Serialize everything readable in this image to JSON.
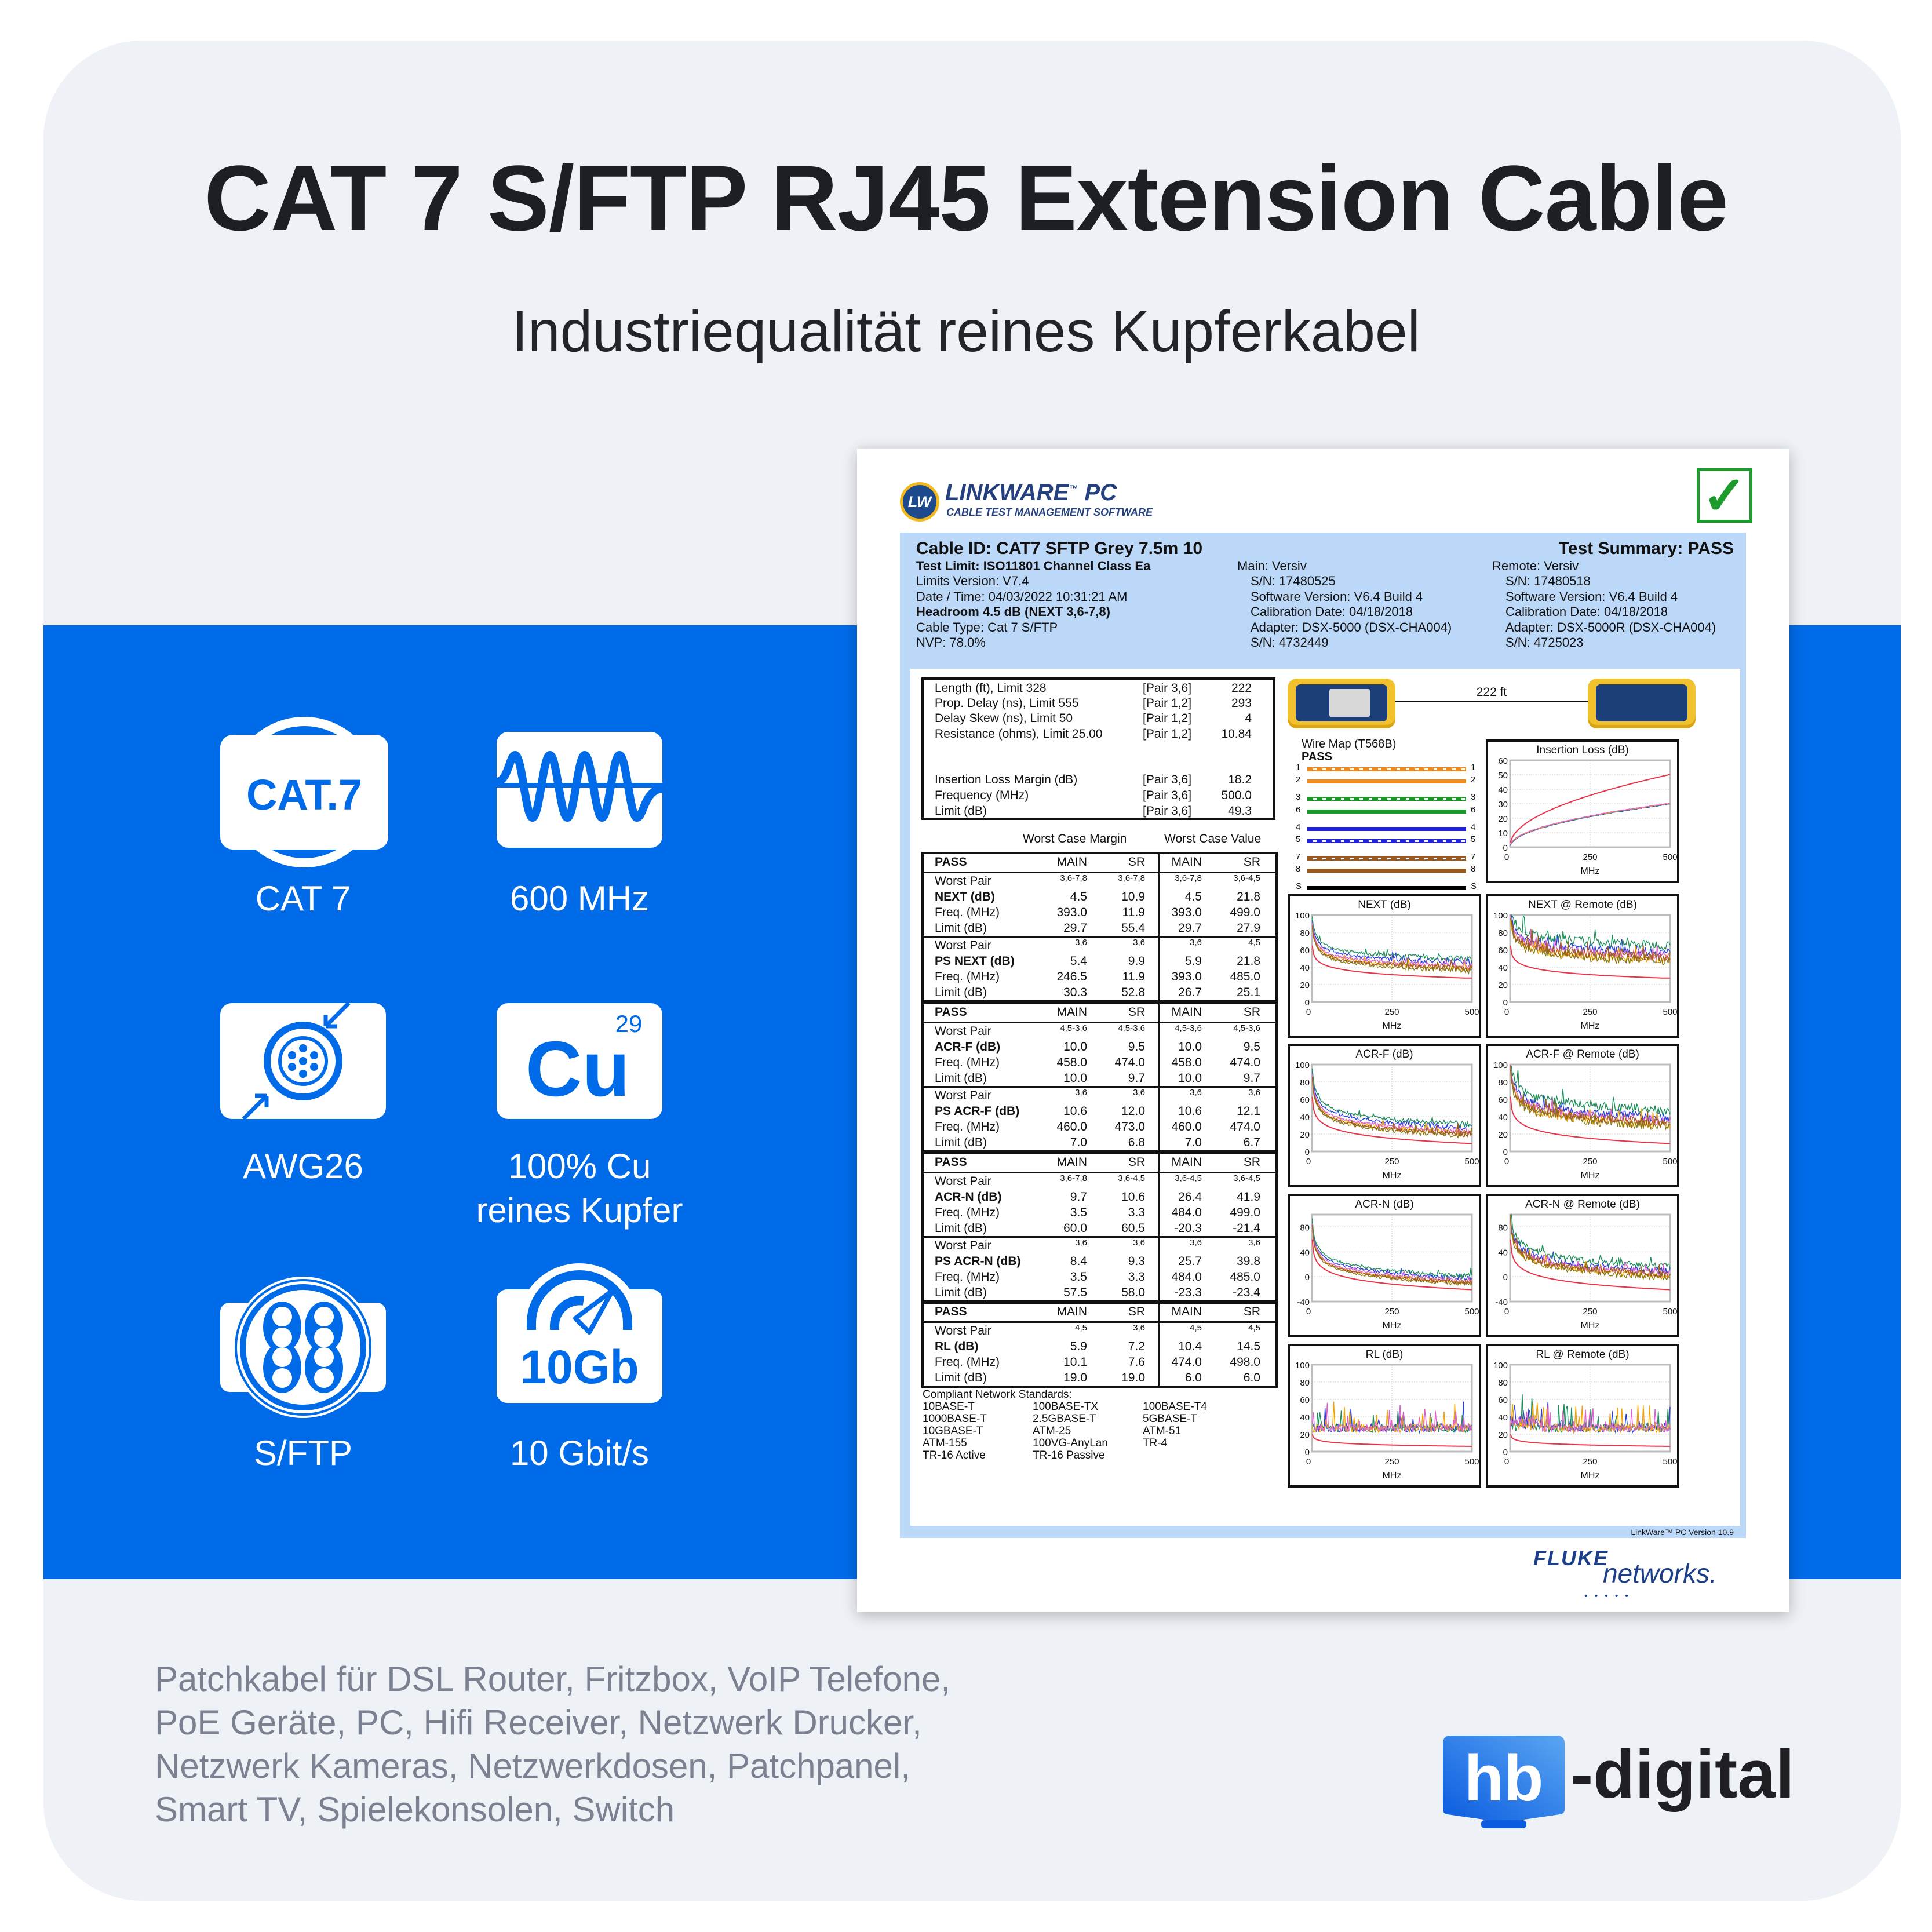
{
  "title": "CAT 7 S/FTP RJ45 Extension Cable",
  "subtitle": "Industriequalität reines Kupferkabel",
  "colors": {
    "brand_blue": "#006be8",
    "card_bg": "#eef1f6",
    "report_blue": "#bcd8f8",
    "pass_green": "#1c9a2c",
    "limit_red": "#e8334a"
  },
  "features": [
    {
      "icon": "cat7-badge-icon",
      "icon_text": "CAT.7",
      "label": "CAT 7"
    },
    {
      "icon": "frequency-wave-icon",
      "label": "600 MHz"
    },
    {
      "icon": "cable-cross-section-icon",
      "label": "AWG26"
    },
    {
      "icon": "copper-element-icon",
      "icon_text": "Cu",
      "icon_sup": "29",
      "label_line1": "100% Cu",
      "label_line2": "reines Kupfer"
    },
    {
      "icon": "shielded-pairs-icon",
      "label": "S/FTP"
    },
    {
      "icon": "speedometer-icon",
      "icon_text": "10Gb",
      "label": "10 Gbit/s"
    }
  ],
  "bottom_lines": [
    "Patchkabel für DSL Router, Fritzbox, VoIP Telefone,",
    "PoE Geräte, PC, Hifi Receiver, Netzwerk Drucker,",
    "Netzwerk Kameras, Netzwerkdosen, Patchpanel,",
    "Smart TV, Spielekonsolen, Switch"
  ],
  "brand": {
    "logo_box": "hb",
    "logo_text": "-digital"
  },
  "report": {
    "logo_title": "LINKWARE",
    "logo_tm": "™",
    "logo_pc": "PC",
    "logo_sub": "CABLE TEST MANAGEMENT SOFTWARE",
    "logo_badge": "LW",
    "check": "✓",
    "cable_id": "Cable ID: CAT7 SFTP Grey 7.5m 10",
    "test_summary": "Test Summary: PASS",
    "left_lines": [
      {
        "text": "Test Limit: ISO11801 Channel Class Ea",
        "bold": true
      },
      {
        "text": "Limits Version: V7.4",
        "bold": false
      },
      {
        "text": "Date / Time: 04/03/2022  10:31:21 AM",
        "bold": false
      },
      {
        "text": "Headroom 4.5 dB (NEXT 3,6-7,8)",
        "bold": true
      },
      {
        "text": "Cable Type: Cat 7 S/FTP",
        "bold": false
      },
      {
        "text": "NVP: 78.0%",
        "bold": false
      }
    ],
    "main_lines": [
      "Main: Versiv",
      "S/N: 17480525",
      "Software Version: V6.4 Build 4",
      "Calibration Date: 04/18/2018",
      "Adapter: DSX-5000 (DSX-CHA004)",
      "S/N: 4732449"
    ],
    "remote_lines": [
      "Remote: Versiv",
      "S/N: 17480518",
      "Software Version: V6.4 Build 4",
      "Calibration Date: 04/18/2018",
      "Adapter: DSX-5000R (DSX-CHA004)",
      "S/N: 4725023"
    ],
    "summary": [
      {
        "label": "Length (ft), Limit 328",
        "pair": "[Pair 3,6]",
        "value": "222"
      },
      {
        "label": "Prop. Delay (ns), Limit 555",
        "pair": "[Pair 1,2]",
        "value": "293"
      },
      {
        "label": "Delay Skew (ns), Limit 50",
        "pair": "[Pair 1,2]",
        "value": "4"
      },
      {
        "label": "Resistance (ohms), Limit 25.00",
        "pair": "[Pair 1,2]",
        "value": "10.84"
      },
      {
        "label": "Insertion Loss Margin (dB)",
        "pair": "[Pair 3,6]",
        "value": "18.2"
      },
      {
        "label": "Frequency (MHz)",
        "pair": "[Pair 3,6]",
        "value": "500.0"
      },
      {
        "label": "Limit (dB)",
        "pair": "[Pair 3,6]",
        "value": "49.3"
      }
    ],
    "worst_case_margin": "Worst Case Margin",
    "worst_case_value": "Worst Case Value",
    "tables": [
      {
        "status": "PASS",
        "columns": [
          "MAIN",
          "SR",
          "MAIN",
          "SR"
        ],
        "groups": [
          {
            "rows": [
              [
                "Worst Pair",
                "3,6-7,8",
                "3,6-7,8",
                "3,6-7,8",
                "3,6-4,5"
              ],
              [
                "NEXT (dB)",
                "4.5",
                "10.9",
                "4.5",
                "21.8"
              ],
              [
                "Freq. (MHz)",
                "393.0",
                "11.9",
                "393.0",
                "499.0"
              ],
              [
                "Limit (dB)",
                "29.7",
                "55.4",
                "29.7",
                "27.9"
              ]
            ]
          },
          {
            "rows": [
              [
                "Worst Pair",
                "3,6",
                "3,6",
                "3,6",
                "4,5"
              ],
              [
                "PS NEXT (dB)",
                "5.4",
                "9.9",
                "5.9",
                "21.8"
              ],
              [
                "Freq. (MHz)",
                "246.5",
                "11.9",
                "393.0",
                "485.0"
              ],
              [
                "Limit (dB)",
                "30.3",
                "52.8",
                "26.7",
                "25.1"
              ]
            ]
          }
        ]
      },
      {
        "status": "PASS",
        "columns": [
          "MAIN",
          "SR",
          "MAIN",
          "SR"
        ],
        "groups": [
          {
            "rows": [
              [
                "Worst Pair",
                "4,5-3,6",
                "4,5-3,6",
                "4,5-3,6",
                "4,5-3,6"
              ],
              [
                "ACR-F (dB)",
                "10.0",
                "9.5",
                "10.0",
                "9.5"
              ],
              [
                "Freq. (MHz)",
                "458.0",
                "474.0",
                "458.0",
                "474.0"
              ],
              [
                "Limit (dB)",
                "10.0",
                "9.7",
                "10.0",
                "9.7"
              ]
            ]
          },
          {
            "rows": [
              [
                "Worst Pair",
                "3,6",
                "3,6",
                "3,6",
                "3,6"
              ],
              [
                "PS ACR-F (dB)",
                "10.6",
                "12.0",
                "10.6",
                "12.1"
              ],
              [
                "Freq. (MHz)",
                "460.0",
                "473.0",
                "460.0",
                "474.0"
              ],
              [
                "Limit (dB)",
                "7.0",
                "6.8",
                "7.0",
                "6.7"
              ]
            ]
          }
        ]
      },
      {
        "status": "PASS",
        "columns": [
          "MAIN",
          "SR",
          "MAIN",
          "SR"
        ],
        "groups": [
          {
            "rows": [
              [
                "Worst Pair",
                "3,6-7,8",
                "3,6-4,5",
                "3,6-4,5",
                "3,6-4,5"
              ],
              [
                "ACR-N (dB)",
                "9.7",
                "10.6",
                "26.4",
                "41.9"
              ],
              [
                "Freq. (MHz)",
                "3.5",
                "3.3",
                "484.0",
                "499.0"
              ],
              [
                "Limit (dB)",
                "60.0",
                "60.5",
                "-20.3",
                "-21.4"
              ]
            ]
          },
          {
            "rows": [
              [
                "Worst Pair",
                "3,6",
                "3,6",
                "3,6",
                "3,6"
              ],
              [
                "PS ACR-N (dB)",
                "8.4",
                "9.3",
                "25.7",
                "39.8"
              ],
              [
                "Freq. (MHz)",
                "3.5",
                "3.3",
                "484.0",
                "485.0"
              ],
              [
                "Limit (dB)",
                "57.5",
                "58.0",
                "-23.3",
                "-23.4"
              ]
            ]
          }
        ]
      },
      {
        "status": "PASS",
        "columns": [
          "MAIN",
          "SR",
          "MAIN",
          "SR"
        ],
        "groups": [
          {
            "rows": [
              [
                "Worst Pair",
                "4,5",
                "3,6",
                "4,5",
                "4,5"
              ],
              [
                "RL (dB)",
                "5.9",
                "7.2",
                "10.4",
                "14.5"
              ],
              [
                "Freq. (MHz)",
                "10.1",
                "7.6",
                "474.0",
                "498.0"
              ],
              [
                "Limit (dB)",
                "19.0",
                "19.0",
                "6.0",
                "6.0"
              ]
            ]
          }
        ]
      }
    ],
    "standards_title": "Compliant Network Standards:",
    "standards": [
      [
        "10BASE-T",
        "100BASE-TX",
        "100BASE-T4"
      ],
      [
        "1000BASE-T",
        "2.5GBASE-T",
        "5GBASE-T"
      ],
      [
        "10GBASE-T",
        "ATM-25",
        "ATM-51"
      ],
      [
        "ATM-155",
        "100VG-AnyLan",
        "TR-4"
      ],
      [
        "TR-16 Active",
        "TR-16 Passive"
      ]
    ],
    "length_label": "222 ft",
    "wire_map": {
      "title": "Wire Map (T568B)",
      "status": "PASS",
      "wires": [
        {
          "pin": "1",
          "color": "#f08a1c",
          "striped": true
        },
        {
          "pin": "2",
          "color": "#f08a1c",
          "striped": false
        },
        {
          "pin": "3",
          "color": "#1a9a2a",
          "striped": true
        },
        {
          "pin": "6",
          "color": "#1a9a2a",
          "striped": false
        },
        {
          "pin": "4",
          "color": "#2222dd",
          "striped": false
        },
        {
          "pin": "5",
          "color": "#2222dd",
          "striped": true
        },
        {
          "pin": "7",
          "color": "#9a5a20",
          "striped": true
        },
        {
          "pin": "8",
          "color": "#9a5a20",
          "striped": false
        },
        {
          "pin": "S",
          "color": "#000000",
          "striped": false
        }
      ]
    },
    "charts": [
      {
        "title": "Insertion Loss (dB)",
        "y_ticks": [
          0,
          10,
          20,
          30,
          40,
          50,
          60
        ],
        "y_range": [
          0,
          60
        ],
        "x_ticks": [
          0,
          250,
          500
        ],
        "x_label": "MHz"
      },
      {
        "title": "NEXT (dB)",
        "y_ticks": [
          0,
          20,
          40,
          60,
          80,
          100
        ],
        "y_range": [
          0,
          100
        ],
        "x_ticks": [
          0,
          250,
          500
        ],
        "x_label": "MHz"
      },
      {
        "title": "NEXT @ Remote (dB)",
        "y_ticks": [
          0,
          20,
          40,
          60,
          80,
          100
        ],
        "y_range": [
          0,
          100
        ],
        "x_ticks": [
          0,
          250,
          500
        ],
        "x_label": "MHz"
      },
      {
        "title": "ACR-F (dB)",
        "y_ticks": [
          0,
          20,
          40,
          60,
          80,
          100
        ],
        "y_range": [
          0,
          100
        ],
        "x_ticks": [
          0,
          250,
          500
        ],
        "x_label": "MHz"
      },
      {
        "title": "ACR-F @ Remote (dB)",
        "y_ticks": [
          0,
          20,
          40,
          60,
          80,
          100
        ],
        "y_range": [
          0,
          100
        ],
        "x_ticks": [
          0,
          250,
          500
        ],
        "x_label": "MHz"
      },
      {
        "title": "ACR-N (dB)",
        "y_ticks": [
          -40,
          0,
          40,
          80
        ],
        "y_range": [
          -40,
          100
        ],
        "x_ticks": [
          0,
          250,
          500
        ],
        "x_label": "MHz"
      },
      {
        "title": "ACR-N @ Remote (dB)",
        "y_ticks": [
          -40,
          0,
          40,
          80
        ],
        "y_range": [
          -40,
          100
        ],
        "x_ticks": [
          0,
          250,
          500
        ],
        "x_label": "MHz"
      },
      {
        "title": "RL (dB)",
        "y_ticks": [
          0,
          20,
          40,
          60,
          80,
          100
        ],
        "y_range": [
          0,
          100
        ],
        "x_ticks": [
          0,
          250,
          500
        ],
        "x_label": "MHz"
      },
      {
        "title": "RL @ Remote (dB)",
        "y_ticks": [
          0,
          20,
          40,
          60,
          80,
          100
        ],
        "y_range": [
          0,
          100
        ],
        "x_ticks": [
          0,
          250,
          500
        ],
        "x_label": "MHz"
      }
    ],
    "version": "LinkWare™ PC Version 10.9",
    "fluke_top": "FLUKE",
    "fluke_bottom": "networks."
  }
}
